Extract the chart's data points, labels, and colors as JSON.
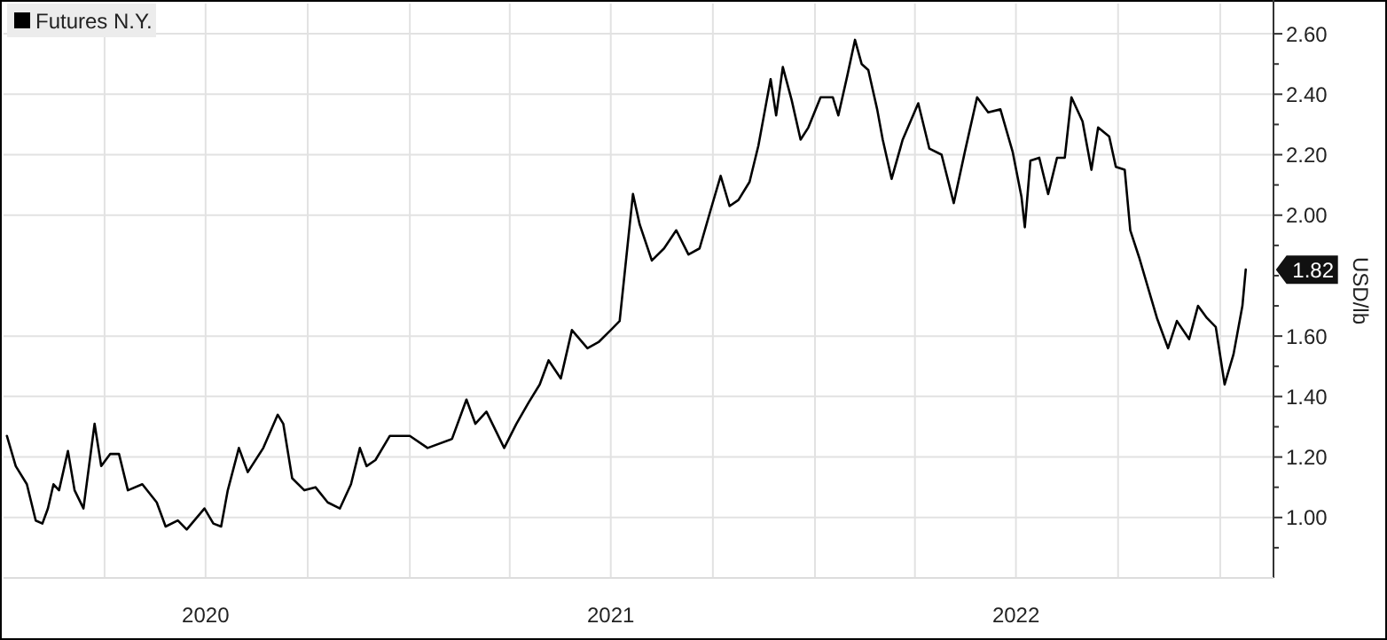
{
  "chart_data": {
    "type": "line",
    "ylabel": "USD/lb",
    "legend": "top left",
    "grid": true,
    "marker": "none",
    "line_style": "solid",
    "xlim": [
      "2020-01-01",
      "2023-02-18"
    ],
    "xticks": [
      {
        "value": "2020-04-01",
        "label": null
      },
      {
        "value": "2020-07-01",
        "label": "2020"
      },
      {
        "value": "2020-10-01",
        "label": null
      },
      {
        "value": "2021-01-01",
        "label": null
      },
      {
        "value": "2021-04-01",
        "label": null
      },
      {
        "value": "2021-07-01",
        "label": "2021"
      },
      {
        "value": "2021-10-01",
        "label": null
      },
      {
        "value": "2022-01-01",
        "label": null
      },
      {
        "value": "2022-04-01",
        "label": null
      },
      {
        "value": "2022-07-01",
        "label": "2022"
      },
      {
        "value": "2022-10-01",
        "label": null
      },
      {
        "value": "2023-01-01",
        "label": null
      }
    ],
    "ylim": [
      0.8,
      2.7
    ],
    "yticks": [
      {
        "value": 0.9,
        "label": null
      },
      {
        "value": 1.0,
        "label": "1.00"
      },
      {
        "value": 1.1,
        "label": null
      },
      {
        "value": 1.2,
        "label": "1.20"
      },
      {
        "value": 1.3,
        "label": null
      },
      {
        "value": 1.4,
        "label": "1.40"
      },
      {
        "value": 1.5,
        "label": null
      },
      {
        "value": 1.6,
        "label": "1.60"
      },
      {
        "value": 1.7,
        "label": null
      },
      {
        "value": 1.8,
        "label": null
      },
      {
        "value": 2.0,
        "label": "2.00"
      },
      {
        "value": 1.9,
        "label": null
      },
      {
        "value": 2.1,
        "label": null
      },
      {
        "value": 2.2,
        "label": "2.20"
      },
      {
        "value": 2.3,
        "label": null
      },
      {
        "value": 2.4,
        "label": "2.40"
      },
      {
        "value": 2.5,
        "label": null
      },
      {
        "value": 2.6,
        "label": "2.60"
      }
    ],
    "annotations": [
      {
        "text": "1.82",
        "x": "2023-01-24",
        "y": 1.82
      }
    ],
    "series": [
      {
        "name": "Futures N.Y.",
        "color": "#000000",
        "x": [
          "2020-01-04",
          "2020-01-12",
          "2020-01-22",
          "2020-01-30",
          "2020-02-05",
          "2020-02-10",
          "2020-02-15",
          "2020-02-20",
          "2020-02-28",
          "2020-03-05",
          "2020-03-13",
          "2020-03-23",
          "2020-03-29",
          "2020-04-06",
          "2020-04-14",
          "2020-04-22",
          "2020-05-05",
          "2020-05-18",
          "2020-05-26",
          "2020-06-06",
          "2020-06-14",
          "2020-06-30",
          "2020-07-08",
          "2020-07-15",
          "2020-07-21",
          "2020-07-31",
          "2020-08-08",
          "2020-08-22",
          "2020-09-04",
          "2020-09-09",
          "2020-09-17",
          "2020-09-28",
          "2020-10-08",
          "2020-10-19",
          "2020-10-30",
          "2020-11-09",
          "2020-11-17",
          "2020-11-23",
          "2020-12-01",
          "2020-12-14",
          "2021-01-01",
          "2021-01-17",
          "2021-02-08",
          "2021-02-21",
          "2021-03-01",
          "2021-03-11",
          "2021-03-27",
          "2021-04-07",
          "2021-04-18",
          "2021-04-28",
          "2021-05-06",
          "2021-05-17",
          "2021-05-27",
          "2021-06-10",
          "2021-06-20",
          "2021-07-01",
          "2021-07-09",
          "2021-07-17",
          "2021-07-21",
          "2021-07-27",
          "2021-08-07",
          "2021-08-18",
          "2021-08-29",
          "2021-09-09",
          "2021-09-19",
          "2021-09-30",
          "2021-10-08",
          "2021-10-16",
          "2021-10-24",
          "2021-11-03",
          "2021-11-11",
          "2021-11-17",
          "2021-11-22",
          "2021-11-27",
          "2021-12-03",
          "2021-12-11",
          "2021-12-19",
          "2021-12-26",
          "2022-01-06",
          "2022-01-17",
          "2022-01-22",
          "2022-01-30",
          "2022-02-06",
          "2022-02-12",
          "2022-02-18",
          "2022-02-26",
          "2022-03-03",
          "2022-03-11",
          "2022-03-21",
          "2022-04-04",
          "2022-04-14",
          "2022-04-25",
          "2022-05-06",
          "2022-05-16",
          "2022-05-27",
          "2022-06-06",
          "2022-06-17",
          "2022-06-28",
          "2022-07-06",
          "2022-07-09",
          "2022-07-14",
          "2022-07-22",
          "2022-07-30",
          "2022-08-07",
          "2022-08-14",
          "2022-08-20",
          "2022-08-30",
          "2022-09-07",
          "2022-09-13",
          "2022-09-23",
          "2022-09-29",
          "2022-10-07",
          "2022-10-12",
          "2022-10-20",
          "2022-10-28",
          "2022-11-05",
          "2022-11-15",
          "2022-11-23",
          "2022-12-04",
          "2022-12-12",
          "2022-12-20",
          "2022-12-28",
          "2023-01-05",
          "2023-01-13",
          "2023-01-21",
          "2023-01-24"
        ],
        "values": [
          1.27,
          1.17,
          1.11,
          0.99,
          0.98,
          1.03,
          1.11,
          1.09,
          1.22,
          1.09,
          1.03,
          1.31,
          1.17,
          1.21,
          1.21,
          1.09,
          1.11,
          1.05,
          0.97,
          0.99,
          0.96,
          1.03,
          0.98,
          0.97,
          1.09,
          1.23,
          1.15,
          1.23,
          1.34,
          1.31,
          1.13,
          1.09,
          1.1,
          1.05,
          1.03,
          1.11,
          1.23,
          1.17,
          1.19,
          1.27,
          1.27,
          1.23,
          1.26,
          1.39,
          1.31,
          1.35,
          1.23,
          1.31,
          1.38,
          1.44,
          1.52,
          1.46,
          1.62,
          1.56,
          1.58,
          1.62,
          1.65,
          1.93,
          2.07,
          1.97,
          1.85,
          1.89,
          1.95,
          1.87,
          1.89,
          2.03,
          2.13,
          2.03,
          2.05,
          2.11,
          2.23,
          2.35,
          2.45,
          2.33,
          2.49,
          2.38,
          2.25,
          2.29,
          2.39,
          2.39,
          2.33,
          2.46,
          2.58,
          2.5,
          2.48,
          2.35,
          2.25,
          2.12,
          2.25,
          2.37,
          2.22,
          2.2,
          2.04,
          2.21,
          2.39,
          2.34,
          2.35,
          2.21,
          2.06,
          1.96,
          2.18,
          2.19,
          2.07,
          2.19,
          2.19,
          2.39,
          2.31,
          2.15,
          2.29,
          2.26,
          2.16,
          2.15,
          1.95,
          1.86,
          1.76,
          1.66,
          1.56,
          1.65,
          1.59,
          1.7,
          1.66,
          1.63,
          1.44,
          1.54,
          1.7,
          1.82
        ]
      }
    ]
  }
}
